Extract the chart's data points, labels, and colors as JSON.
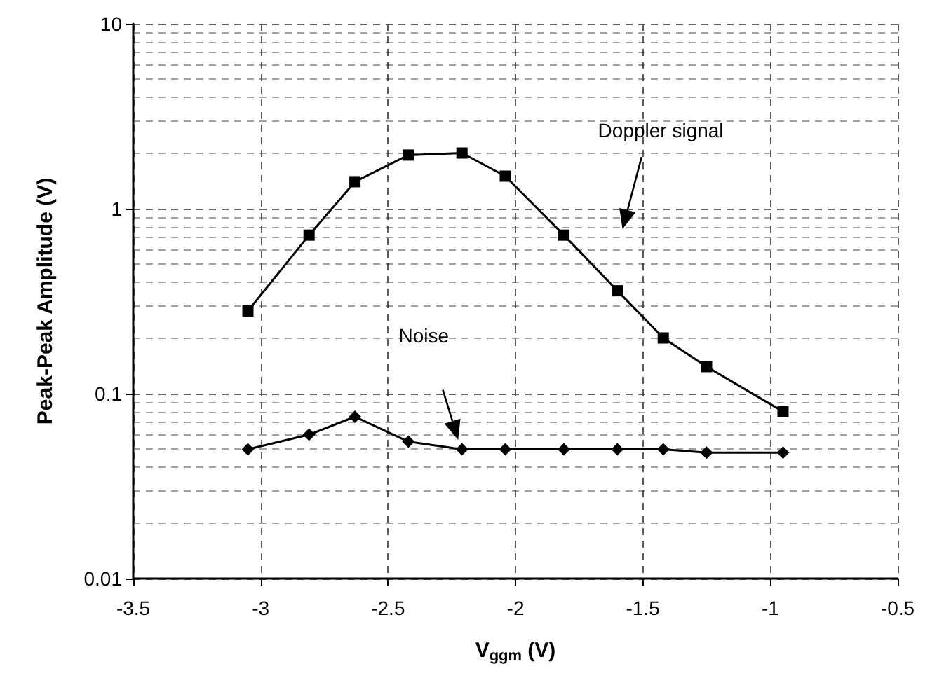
{
  "chart_data": {
    "type": "line",
    "xlabel": "V$_{ggm}$ (V)",
    "ylabel": "Peak-Peak Amplitude (V)",
    "x": [
      -3.05,
      -2.81,
      -2.63,
      -2.42,
      -2.21,
      -2.04,
      -1.81,
      -1.6,
      -1.42,
      -1.25,
      -0.95
    ],
    "series": [
      {
        "color": "#000000",
        "marker": "square",
        "values": [
          0.28,
          0.72,
          1.4,
          1.95,
          2.0,
          1.5,
          0.72,
          0.36,
          0.2,
          0.14,
          0.08
        ]
      },
      {
        "color": "#000000",
        "marker": "diamond",
        "values": [
          0.05,
          0.06,
          0.075,
          0.055,
          0.05,
          0.05,
          0.05,
          0.05,
          0.05,
          0.048,
          0.048
        ]
      }
    ],
    "annotations": [
      "Doppler signal",
      "Noise"
    ],
    "xlim": [
      -3.5,
      -0.5
    ],
    "xticks": [
      -3.5,
      -3,
      -2.5,
      -2,
      -1.5,
      -1,
      -0.5
    ],
    "ylim": [
      0.01,
      10
    ],
    "yticks": [
      0.01,
      0.1,
      1,
      10
    ],
    "log": "y",
    "grid": true,
    "line_style": "solid"
  }
}
